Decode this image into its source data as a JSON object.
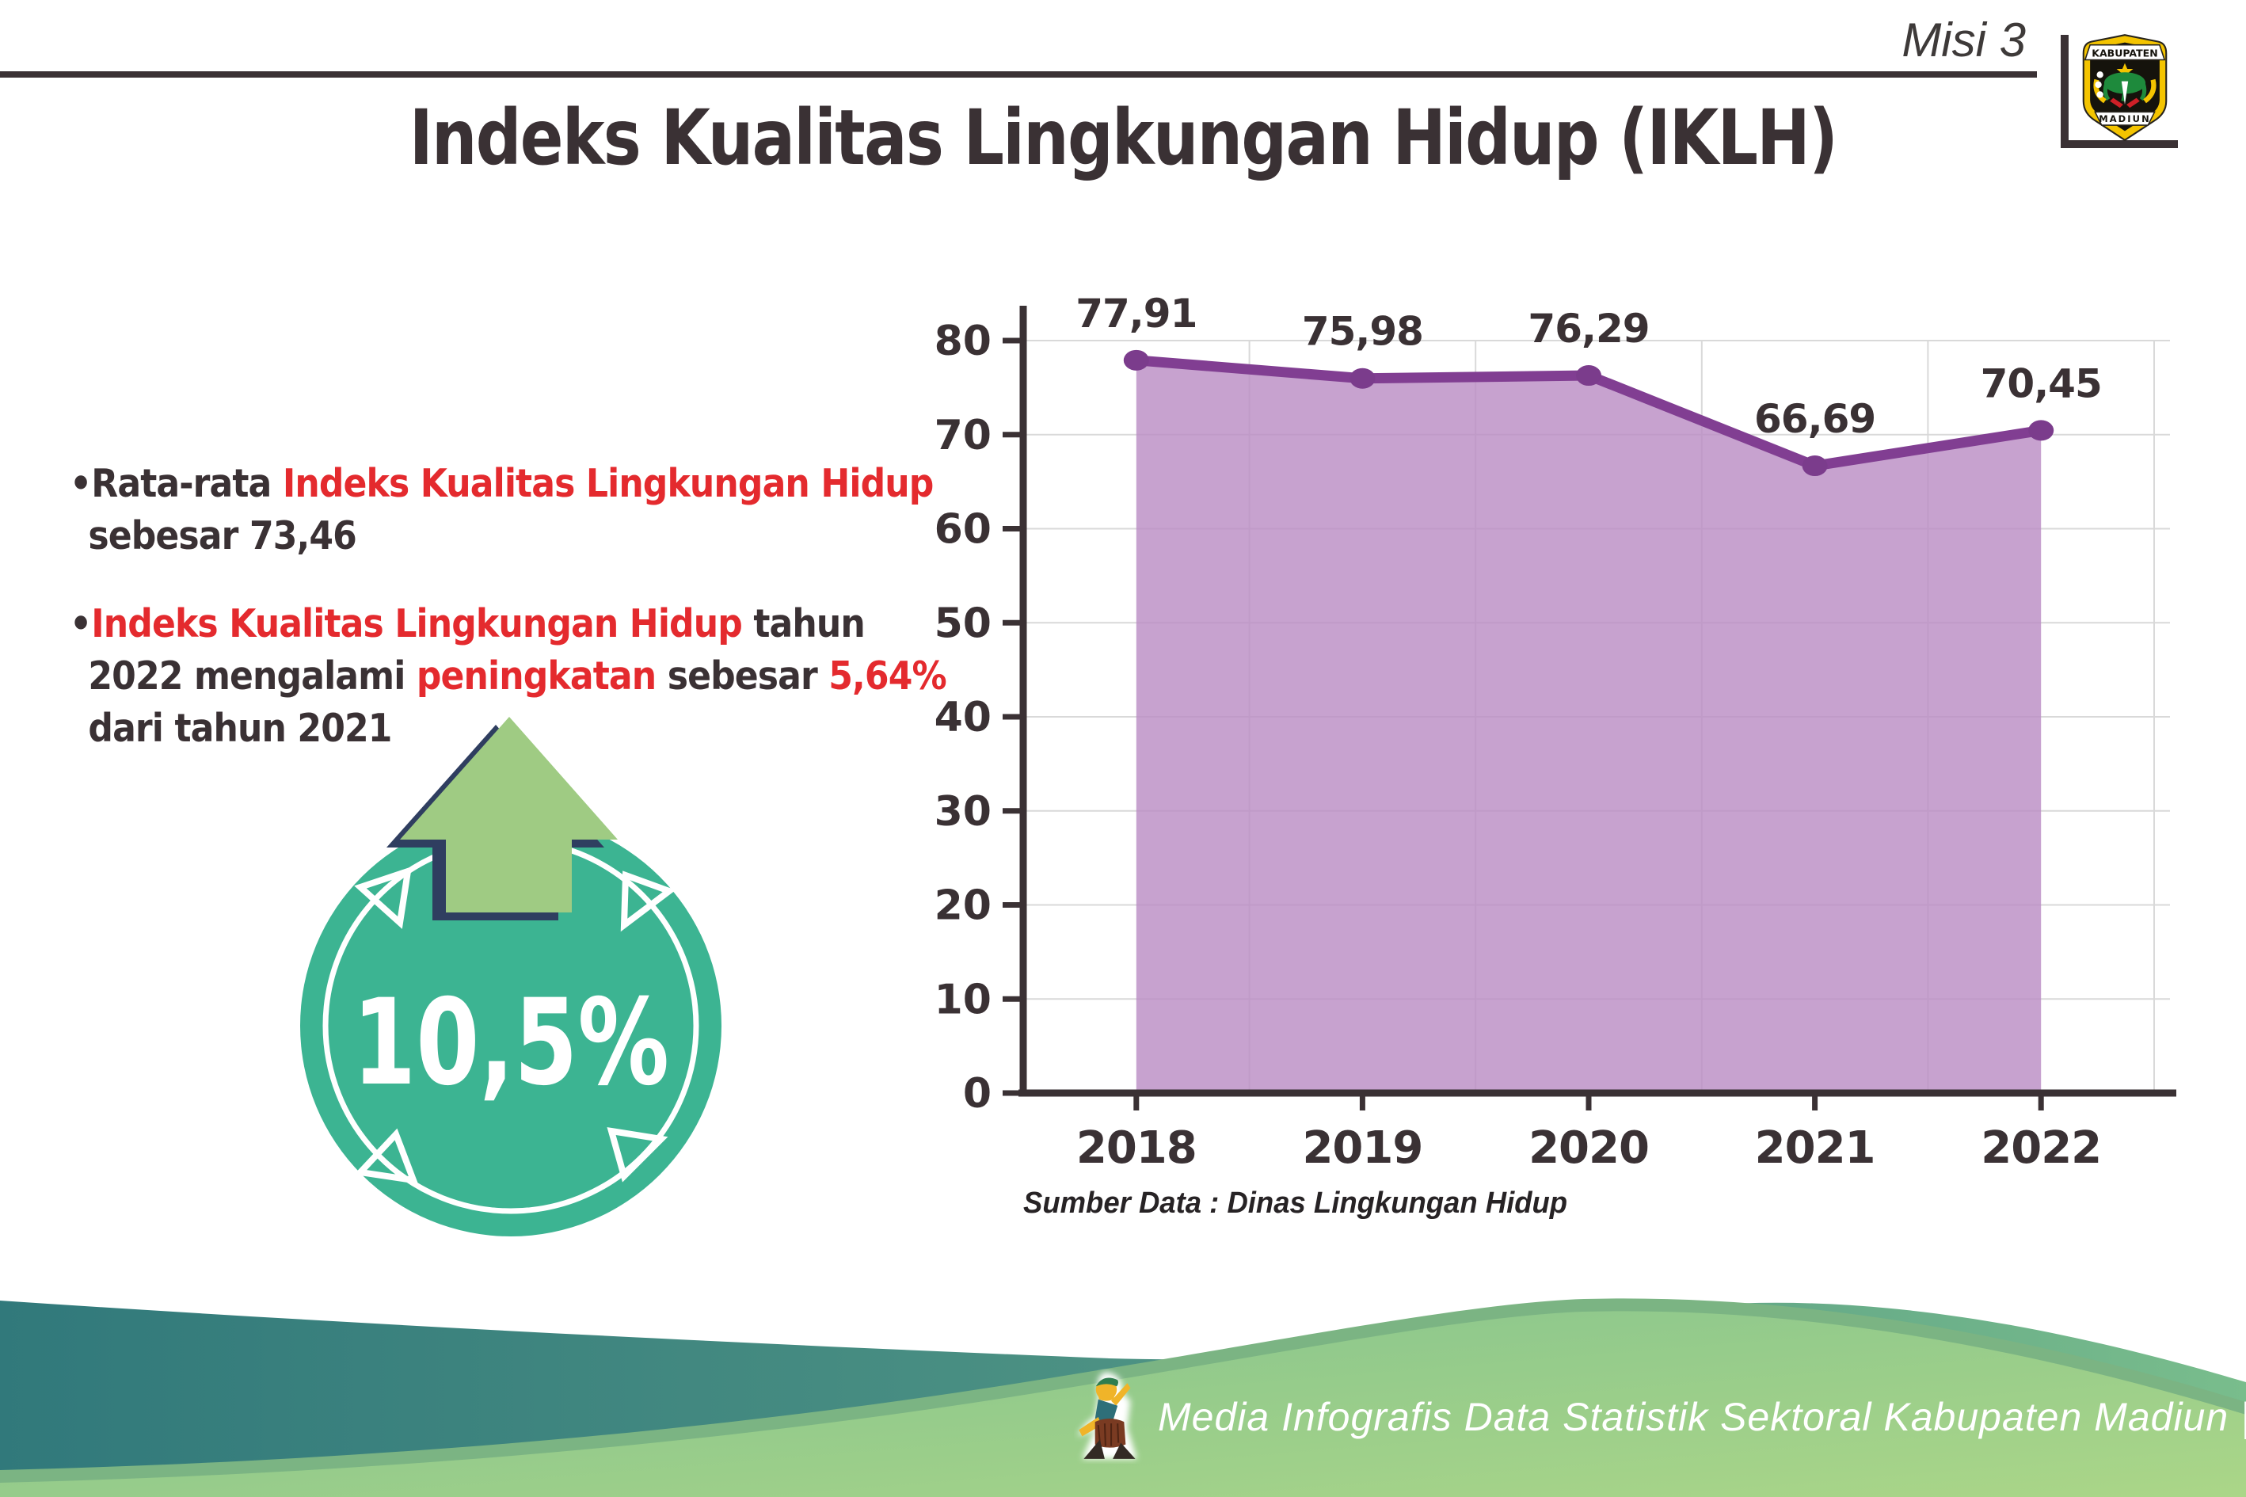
{
  "header": {
    "mission_label": "Misi 3",
    "title": "Indeks Kualitas Lingkungan Hidup (IKLH)"
  },
  "logo": {
    "top_text": "KABUPATEN",
    "bottom_text": "MADIUN"
  },
  "bullets": [
    {
      "segments": [
        {
          "text": "•Rata-rata ",
          "color": "dark"
        },
        {
          "text": "Indeks Kualitas Lingkungan Hidup",
          "color": "red"
        },
        {
          "text": " sebesar 73,46",
          "color": "dark"
        }
      ]
    },
    {
      "segments": [
        {
          "text": "•",
          "color": "dark"
        },
        {
          "text": "Indeks Kualitas Lingkungan Hidup",
          "color": "red"
        },
        {
          "text": " tahun 2022 mengalami ",
          "color": "dark"
        },
        {
          "text": "peningkatan",
          "color": "red"
        },
        {
          "text": " sebesar ",
          "color": "dark"
        },
        {
          "text": "5,64%",
          "color": "red"
        },
        {
          "text": " dari tahun 2021",
          "color": "dark"
        }
      ]
    }
  ],
  "badge": {
    "value": "10,5%",
    "direction": "up-arrow"
  },
  "chart_data": {
    "type": "area",
    "title": "",
    "xlabel": "",
    "ylabel": "",
    "categories": [
      "2018",
      "2019",
      "2020",
      "2021",
      "2022"
    ],
    "values": [
      77.91,
      75.98,
      76.29,
      66.69,
      70.45
    ],
    "labels": [
      "77,91",
      "75,98",
      "76,29",
      "66,69",
      "70,45"
    ],
    "ylim": [
      0,
      80
    ],
    "yticks": [
      0,
      10,
      20,
      30,
      40,
      50,
      60,
      70,
      80
    ],
    "grid": "on",
    "legend": "none",
    "source_note": "Sumber Data : Dinas Lingkungan Hidup"
  },
  "footer": {
    "text": "Media Infografis Data Statistik Sektoral Kabupaten Madiun |"
  },
  "colors": {
    "dark_text": "#3a3134",
    "red_text": "#e42a2e",
    "line_purple": "#813e92",
    "marker_purple": "#7b3c8c",
    "area_fill": "#bb8ec5",
    "gridline": "#d9d9d9",
    "badge_teal": "#3cb492",
    "arrow_green": "#9fcb83",
    "arrow_shadow_navy": "#2f3e60",
    "wave_teal": "#31797b",
    "wave_green_light": "#a9d588",
    "wave_green_edge": "#7bb483"
  }
}
